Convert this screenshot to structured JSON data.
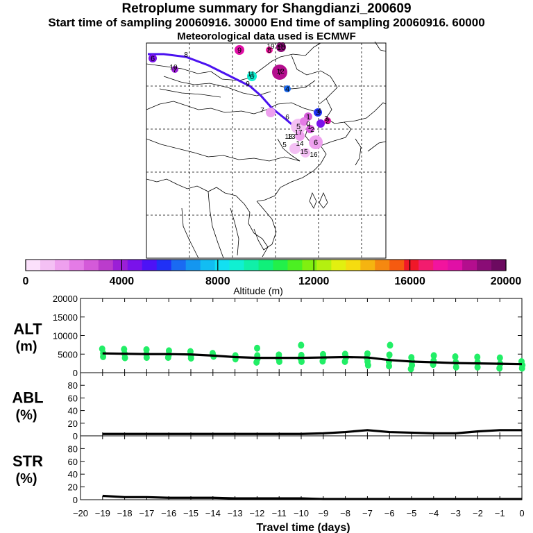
{
  "header": {
    "title": "Retroplume summary for Shangdianzi_200609",
    "line2": "Start time of sampling 20060916. 30000     End time of sampling 20060916. 60000",
    "line3": "Meteorological data used is ECMWF"
  },
  "chart_data": [
    {
      "type": "map",
      "panel": "retroplume-map",
      "description_labels": {
        "colorbar_title": "Altitude (m)"
      },
      "path_days": [
        "0",
        "1",
        "2",
        "3",
        "4",
        "5",
        "6",
        "7",
        "8",
        "9",
        "10",
        "11",
        "12",
        "13",
        "14",
        "15",
        "16",
        "17",
        "18",
        "19",
        "20"
      ],
      "clusters": [
        {
          "label": "9",
          "altitude": 18000
        },
        {
          "label": "10",
          "altitude": 19000
        },
        {
          "label": "6",
          "altitude": 4500
        },
        {
          "label": "7",
          "altitude": 4200
        },
        {
          "label": "8",
          "altitude": 17500
        },
        {
          "label": "6",
          "altitude": 8500
        },
        {
          "label": "7",
          "altitude": 18200
        },
        {
          "label": "4",
          "altitude": 6500
        },
        {
          "label": "3",
          "altitude": 5500
        },
        {
          "label": "2",
          "altitude": 17600
        },
        {
          "label": "1",
          "altitude": 3000
        },
        {
          "label": "5",
          "altitude": 1200
        },
        {
          "label": "6",
          "altitude": 1500
        }
      ],
      "colorbar": {
        "min": 0,
        "max": 20000,
        "tick_labels": [
          "0",
          "4000",
          "8000",
          "12000",
          "16000",
          "20000"
        ],
        "colors": [
          "#fbe0fb",
          "#f4c0f4",
          "#eea0ee",
          "#e47be6",
          "#d45ad9",
          "#bb3ccc",
          "#9b1fd6",
          "#7a12ea",
          "#4d12f6",
          "#2030f6",
          "#1a6af2",
          "#1496f0",
          "#12bdf2",
          "#12e0f2",
          "#10f0d2",
          "#10f0a8",
          "#10f07a",
          "#22f04a",
          "#4cf022",
          "#80f010",
          "#b4f010",
          "#e2f010",
          "#f5dc10",
          "#f5b410",
          "#f58810",
          "#f55a10",
          "#f01828",
          "#f21c6e",
          "#f2149e",
          "#e010a6",
          "#b40e8e",
          "#8a0c76",
          "#6c0a60"
        ]
      },
      "map_path_altitudes_m": [
        4200,
        4800,
        5200
      ]
    },
    {
      "type": "scatter+line",
      "panel": "ALT",
      "ylabel": "ALT\n(m)",
      "ylabel_line1": "ALT",
      "ylabel_line2": "(m)",
      "ylim": [
        0,
        20000
      ],
      "yticks": [
        "0",
        "5000",
        "10000",
        "15000",
        "20000"
      ],
      "x": [
        -19,
        -18,
        -17,
        -16,
        -15,
        -14,
        -13,
        -12,
        -11,
        -10,
        -9,
        -8,
        -7,
        -6,
        -5,
        -4,
        -3,
        -2,
        -1,
        0
      ],
      "median_line": [
        5200,
        5100,
        5000,
        5000,
        4900,
        4600,
        4200,
        4000,
        4000,
        4000,
        4100,
        4200,
        4100,
        3400,
        3000,
        2800,
        2600,
        2500,
        2400,
        2300
      ],
      "points": [
        [
          -19,
          6400
        ],
        [
          -19,
          5200
        ],
        [
          -19,
          4300
        ],
        [
          -18,
          6300
        ],
        [
          -18,
          5100
        ],
        [
          -18,
          4000
        ],
        [
          -17,
          6200
        ],
        [
          -17,
          5000
        ],
        [
          -17,
          4100
        ],
        [
          -16,
          5900
        ],
        [
          -16,
          4800
        ],
        [
          -16,
          4100
        ],
        [
          -15,
          5700
        ],
        [
          -15,
          4600
        ],
        [
          -15,
          3900
        ],
        [
          -14,
          5200
        ],
        [
          -14,
          4400
        ],
        [
          -13,
          4600
        ],
        [
          -13,
          3700
        ],
        [
          -12,
          4600
        ],
        [
          -12,
          3800
        ],
        [
          -12,
          2800
        ],
        [
          -12,
          6600
        ],
        [
          -11,
          4800
        ],
        [
          -11,
          3900
        ],
        [
          -11,
          3000
        ],
        [
          -10,
          4700
        ],
        [
          -10,
          3900
        ],
        [
          -10,
          3000
        ],
        [
          -10,
          7400
        ],
        [
          -9,
          4900
        ],
        [
          -9,
          4000
        ],
        [
          -9,
          3100
        ],
        [
          -8,
          5000
        ],
        [
          -8,
          4100
        ],
        [
          -8,
          3000
        ],
        [
          -7,
          5100
        ],
        [
          -7,
          4000
        ],
        [
          -7,
          3000
        ],
        [
          -7,
          2000
        ],
        [
          -6,
          7400
        ],
        [
          -6,
          4800
        ],
        [
          -6,
          3000
        ],
        [
          -6,
          1800
        ],
        [
          -5,
          4100
        ],
        [
          -5,
          3000
        ],
        [
          -5,
          2000
        ],
        [
          -5,
          1000
        ],
        [
          -4,
          4600
        ],
        [
          -4,
          3200
        ],
        [
          -4,
          2200
        ],
        [
          -3,
          4300
        ],
        [
          -3,
          2800
        ],
        [
          -3,
          1500
        ],
        [
          -2,
          4200
        ],
        [
          -2,
          2800
        ],
        [
          -2,
          1500
        ],
        [
          -1,
          4000
        ],
        [
          -1,
          2400
        ],
        [
          -1,
          1200
        ],
        [
          0,
          3000
        ],
        [
          0,
          2000
        ],
        [
          0,
          1200
        ]
      ]
    },
    {
      "type": "line",
      "panel": "ABL",
      "ylabel_line1": "ABL",
      "ylabel_line2": "(%)",
      "ylim": [
        0,
        100
      ],
      "yticks": [
        "0",
        "20",
        "40",
        "60",
        "80"
      ],
      "x": [
        -19,
        -18,
        -17,
        -16,
        -15,
        -14,
        -13,
        -12,
        -11,
        -10,
        -9,
        -8,
        -7,
        -6,
        -5,
        -4,
        -3,
        -2,
        -1,
        0
      ],
      "values": [
        3,
        3,
        3,
        3,
        3,
        3,
        3,
        3,
        3,
        3,
        4,
        6,
        9,
        6,
        5,
        4,
        4,
        7,
        9,
        9
      ]
    },
    {
      "type": "line",
      "panel": "STR",
      "ylabel_line1": "STR",
      "ylabel_line2": "(%)",
      "ylim": [
        0,
        100
      ],
      "yticks": [
        "0",
        "20",
        "40",
        "60",
        "80"
      ],
      "x": [
        -19,
        -18,
        -17,
        -16,
        -15,
        -14,
        -13,
        -12,
        -11,
        -10,
        -9,
        -8,
        -7,
        -6,
        -5,
        -4,
        -3,
        -2,
        -1,
        0
      ],
      "values": [
        6,
        4,
        4,
        3,
        3,
        3,
        2,
        2,
        2,
        2,
        1,
        1,
        1,
        1,
        1,
        1,
        1,
        1,
        1,
        1
      ],
      "xlabel": "Travel time (days)",
      "xticks": [
        "-20",
        "-19",
        "-18",
        "-17",
        "-16",
        "-15",
        "-14",
        "-13",
        "-12",
        "-11",
        "-10",
        "-9",
        "-8",
        "-7",
        "-6",
        "-5",
        "-4",
        "-3",
        "-2",
        "-1",
        "0"
      ]
    }
  ]
}
